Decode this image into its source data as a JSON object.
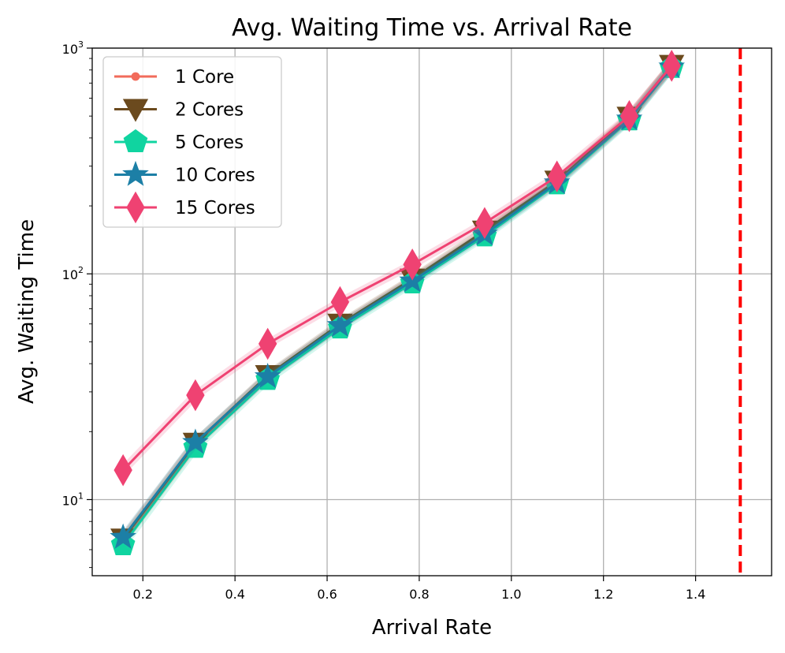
{
  "chart_data": {
    "type": "line",
    "title": "Avg. Waiting Time vs. Arrival Rate",
    "xlabel": "Arrival Rate",
    "ylabel": "Avg. Waiting Time",
    "yscale": "log",
    "xlim": [
      0.09,
      1.565
    ],
    "ylim": [
      4.6,
      1000
    ],
    "grid": true,
    "legend_position": "top-left",
    "x_ticks": [
      0.2,
      0.4,
      0.6,
      0.8,
      1.0,
      1.2,
      1.4
    ],
    "x_tick_labels": [
      "0.2",
      "0.4",
      "0.6",
      "0.8",
      "1.0",
      "1.2",
      "1.4"
    ],
    "y_ticks": [
      10,
      100,
      1000
    ],
    "y_tick_labels": [
      {
        "base": "10",
        "exp": "1"
      },
      {
        "base": "10",
        "exp": "2"
      },
      {
        "base": "10",
        "exp": "3"
      }
    ],
    "x": [
      0.157,
      0.314,
      0.471,
      0.628,
      0.785,
      0.942,
      1.099,
      1.256,
      1.348
    ],
    "vline": {
      "x": 1.497,
      "color": "#ff0000",
      "style": "dashed"
    },
    "series": [
      {
        "name": "1 Core",
        "color": "#f26b5b",
        "marker": "circle",
        "values": [
          6.6,
          17.5,
          35,
          59,
          94,
          152,
          255,
          490,
          830
        ]
      },
      {
        "name": "2 Cores",
        "color": "#6b4a1e",
        "marker": "triangle-down",
        "values": [
          6.7,
          17.8,
          35.5,
          60,
          95,
          155,
          258,
          495,
          840
        ]
      },
      {
        "name": "5 Cores",
        "color": "#10d4a0",
        "marker": "pentagon",
        "values": [
          6.3,
          17.0,
          34,
          57.5,
          91,
          147,
          250,
          480,
          820
        ]
      },
      {
        "name": "10 Cores",
        "color": "#1c7fa6",
        "marker": "star",
        "values": [
          6.8,
          17.9,
          35,
          59,
          93,
          150,
          253,
          485,
          825
        ]
      },
      {
        "name": "15 Cores",
        "color": "#ef4272",
        "marker": "diamond",
        "values": [
          13.5,
          29,
          49,
          75,
          110,
          168,
          270,
          500,
          835
        ]
      }
    ]
  }
}
